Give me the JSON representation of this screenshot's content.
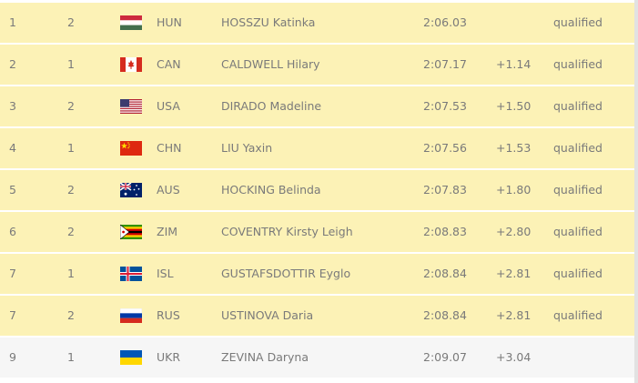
{
  "table": {
    "rows": [
      {
        "rank": "1",
        "heat": "2",
        "country": "HUN",
        "name": "HOSSZU Katinka",
        "time": "2:06.03",
        "status": "qualified"
      },
      {
        "rank": "2",
        "heat": "1",
        "country": "CAN",
        "name": "CALDWELL Hilary",
        "time": "2:07.17",
        "behind": "+1.14",
        "status": "qualified"
      },
      {
        "rank": "3",
        "heat": "2",
        "country": "USA",
        "name": "DIRADO Madeline",
        "time": "2:07.53",
        "behind": "+1.50",
        "status": "qualified"
      },
      {
        "rank": "4",
        "heat": "1",
        "country": "CHN",
        "name": "LIU Yaxin",
        "time": "2:07.56",
        "behind": "+1.53",
        "status": "qualified"
      },
      {
        "rank": "5",
        "heat": "2",
        "country": "AUS",
        "name": "HOCKING Belinda",
        "time": "2:07.83",
        "behind": "+1.80",
        "status": "qualified"
      },
      {
        "rank": "6",
        "heat": "2",
        "country": "ZIM",
        "name": "COVENTRY Kirsty Leigh",
        "time": "2:08.83",
        "behind": "+2.80",
        "status": "qualified"
      },
      {
        "rank": "7",
        "heat": "1",
        "country": "ISL",
        "name": "GUSTAFSDOTTIR Eyglo",
        "time": "2:08.84",
        "behind": "+2.81",
        "status": "qualified"
      },
      {
        "rank": "7",
        "heat": "2",
        "country": "RUS",
        "name": "USTINOVA Daria",
        "time": "2:08.84",
        "behind": "+2.81",
        "status": "qualified"
      },
      {
        "rank": "9",
        "heat": "1",
        "country": "UKR",
        "name": "ZEVINA Daryna",
        "time": "2:09.07",
        "behind": "+3.04"
      }
    ]
  }
}
